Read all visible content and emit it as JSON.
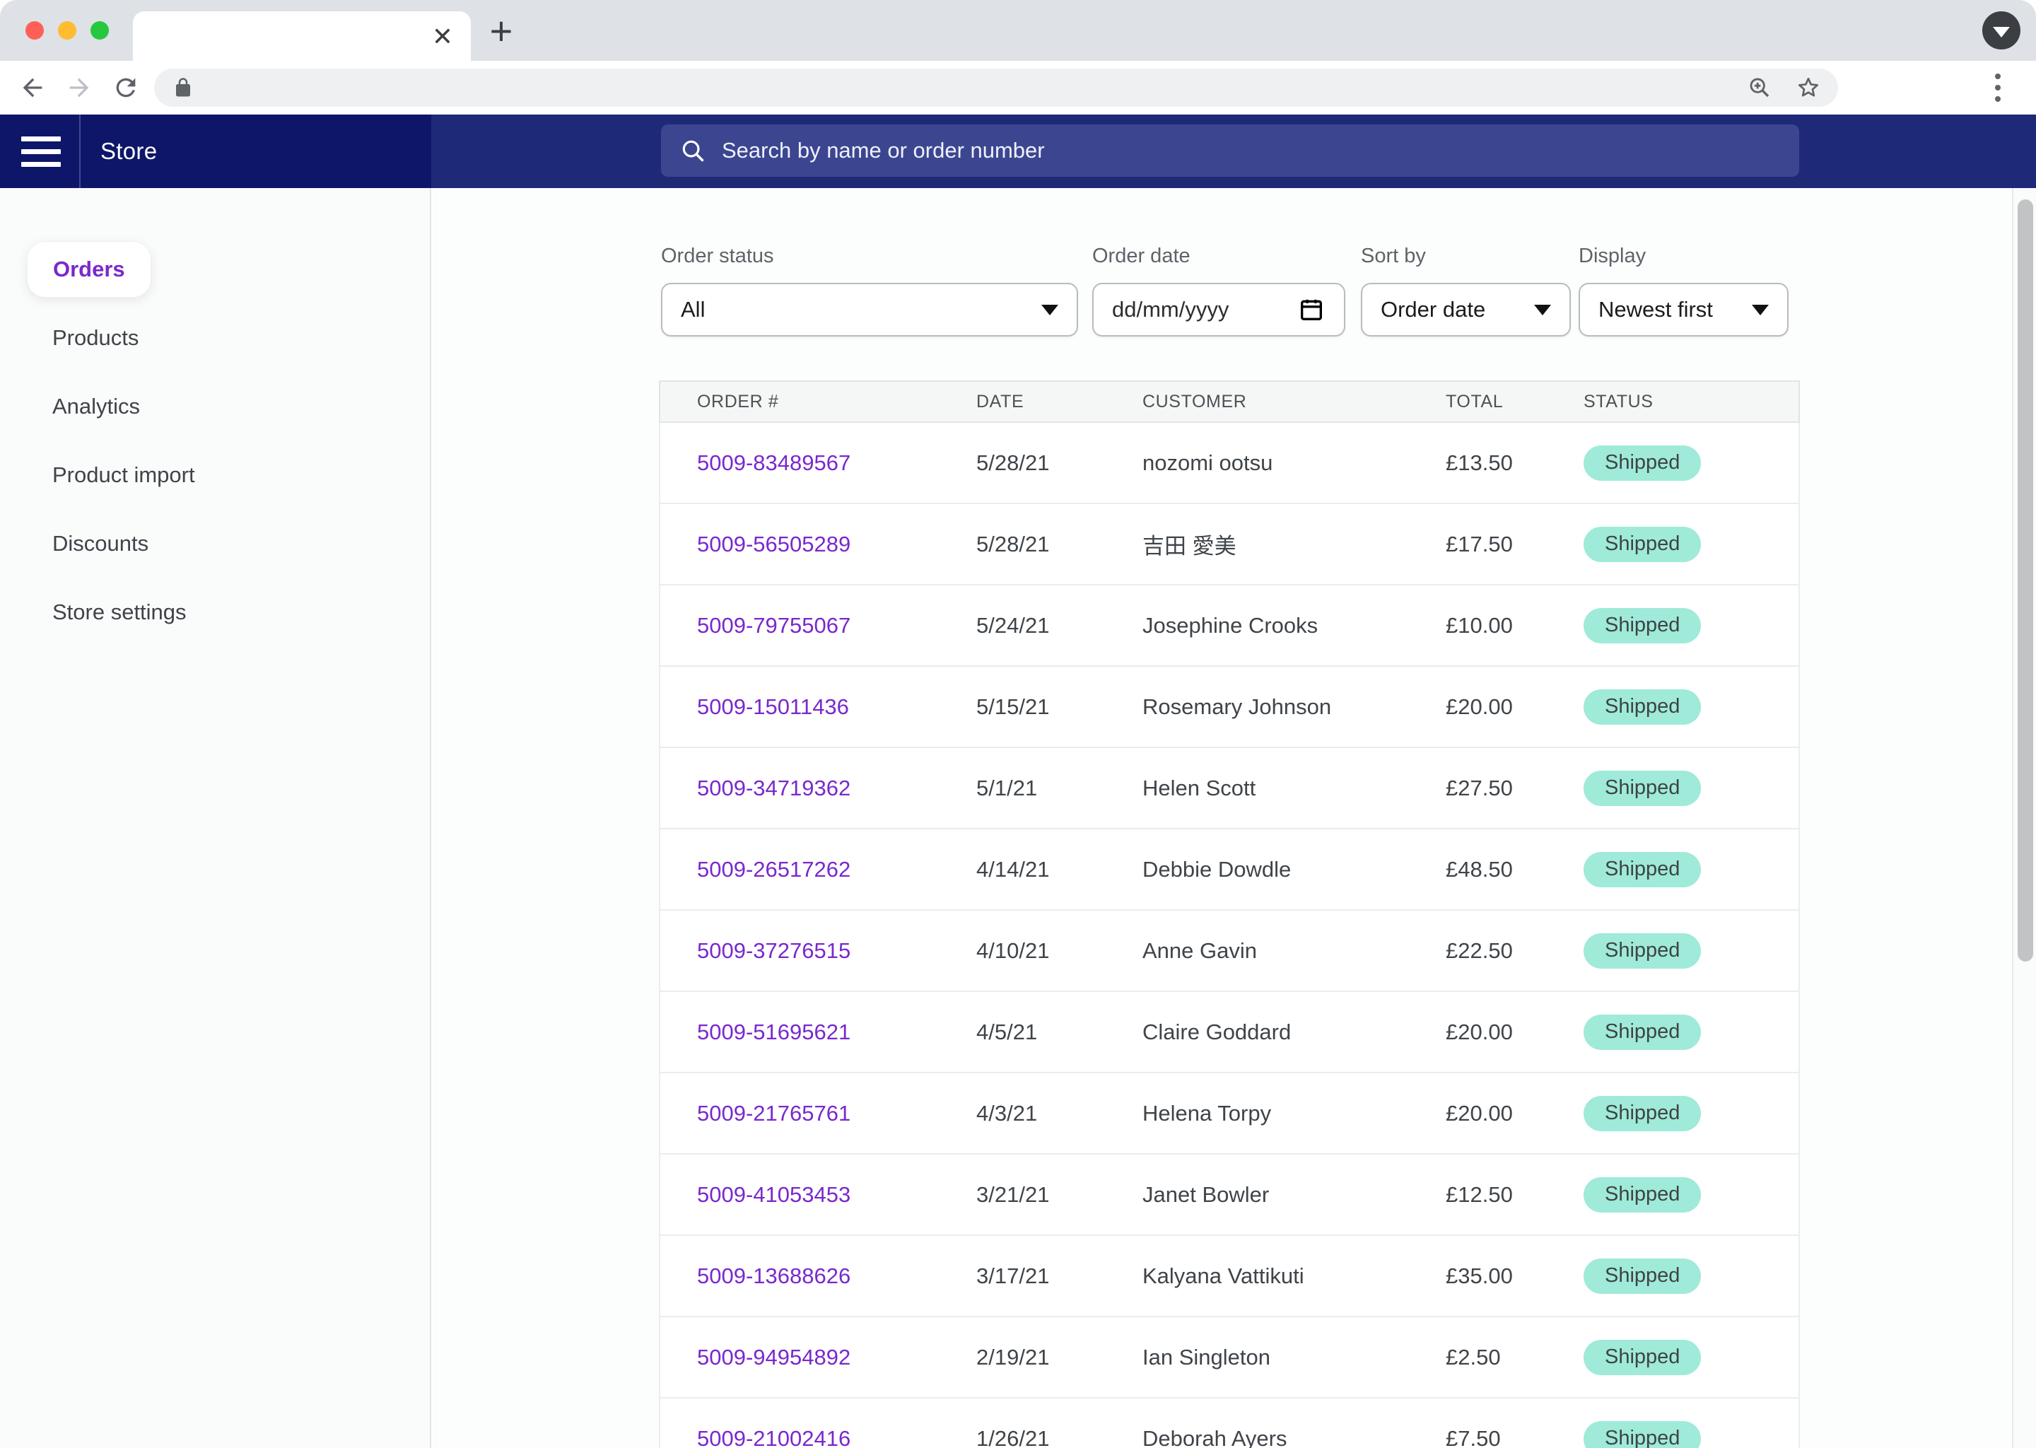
{
  "browser": {
    "window_controls": [
      "close",
      "minimize",
      "maximize"
    ],
    "tab_close_icon": "✕",
    "new_tab_icon": "+",
    "url_value": "",
    "toolbar_icons": [
      "back-arrow",
      "forward-arrow",
      "reload",
      "lock",
      "zoom-in",
      "bookmark-star",
      "overflow-menu"
    ]
  },
  "header": {
    "app_title": "Store",
    "search_placeholder": "Search by name or order number"
  },
  "sidebar": {
    "items": [
      {
        "label": "Orders",
        "active": true
      },
      {
        "label": "Products",
        "active": false
      },
      {
        "label": "Analytics",
        "active": false
      },
      {
        "label": "Product import",
        "active": false
      },
      {
        "label": "Discounts",
        "active": false
      },
      {
        "label": "Store settings",
        "active": false
      }
    ]
  },
  "filters": {
    "order_status": {
      "label": "Order status",
      "value": "All"
    },
    "order_date": {
      "label": "Order date",
      "placeholder": "dd/mm/yyyy"
    },
    "sort_by": {
      "label": "Sort by",
      "value": "Order date"
    },
    "display": {
      "label": "Display",
      "value": "Newest first"
    }
  },
  "orders_table": {
    "columns": [
      "ORDER #",
      "DATE",
      "CUSTOMER",
      "TOTAL",
      "STATUS"
    ],
    "rows": [
      {
        "order": "5009-83489567",
        "date": "5/28/21",
        "customer": "nozomi ootsu",
        "total": "£13.50",
        "status": "Shipped"
      },
      {
        "order": "5009-56505289",
        "date": "5/28/21",
        "customer": "吉田 愛美",
        "total": "£17.50",
        "status": "Shipped"
      },
      {
        "order": "5009-79755067",
        "date": "5/24/21",
        "customer": "Josephine Crooks",
        "total": "£10.00",
        "status": "Shipped"
      },
      {
        "order": "5009-15011436",
        "date": "5/15/21",
        "customer": "Rosemary Johnson",
        "total": "£20.00",
        "status": "Shipped"
      },
      {
        "order": "5009-34719362",
        "date": "5/1/21",
        "customer": "Helen Scott",
        "total": "£27.50",
        "status": "Shipped"
      },
      {
        "order": "5009-26517262",
        "date": "4/14/21",
        "customer": "Debbie Dowdle",
        "total": "£48.50",
        "status": "Shipped"
      },
      {
        "order": "5009-37276515",
        "date": "4/10/21",
        "customer": "Anne Gavin",
        "total": "£22.50",
        "status": "Shipped"
      },
      {
        "order": "5009-51695621",
        "date": "4/5/21",
        "customer": "Claire Goddard",
        "total": "£20.00",
        "status": "Shipped"
      },
      {
        "order": "5009-21765761",
        "date": "4/3/21",
        "customer": "Helena Torpy",
        "total": "£20.00",
        "status": "Shipped"
      },
      {
        "order": "5009-41053453",
        "date": "3/21/21",
        "customer": "Janet Bowler",
        "total": "£12.50",
        "status": "Shipped"
      },
      {
        "order": "5009-13688626",
        "date": "3/17/21",
        "customer": "Kalyana Vattikuti",
        "total": "£35.00",
        "status": "Shipped"
      },
      {
        "order": "5009-94954892",
        "date": "2/19/21",
        "customer": "Ian Singleton",
        "total": "£2.50",
        "status": "Shipped"
      },
      {
        "order": "5009-21002416",
        "date": "1/26/21",
        "customer": "Deborah Ayers",
        "total": "£7.50",
        "status": "Shipped"
      }
    ]
  },
  "colors": {
    "header_navy_left": "#0d1669",
    "header_navy_main": "#1e2a78",
    "search_pill": "#3c4690",
    "accent_purple": "#7a28cc",
    "badge_teal": "#9fead9",
    "traffic_red": "#ff5f57",
    "traffic_yellow": "#febc2e",
    "traffic_green": "#27c840"
  }
}
